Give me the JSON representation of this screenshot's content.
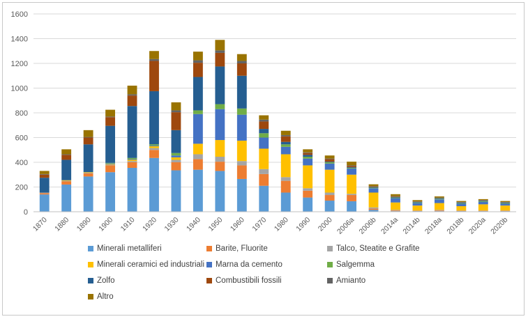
{
  "chart_data": {
    "type": "bar",
    "stacked": true,
    "title": "",
    "xlabel": "",
    "ylabel": "",
    "ylim": [
      0,
      1600
    ],
    "yticks": [
      0,
      200,
      400,
      600,
      800,
      1000,
      1200,
      1400,
      1600
    ],
    "grid": "horizontal",
    "legend": "bottom",
    "categories": [
      "1870",
      "1880",
      "1890",
      "1900",
      "1910",
      "1920",
      "1930",
      "1940",
      "1950",
      "1960",
      "1970",
      "1980",
      "1990",
      "2000",
      "2006a",
      "2006b",
      "2014a",
      "2014b",
      "2018a",
      "2018b",
      "2020a",
      "2020b"
    ],
    "series": [
      {
        "name": "Minerali metalliferi",
        "color": "#5b9bd5",
        "values": [
          140,
          220,
          285,
          320,
          355,
          435,
          335,
          340,
          330,
          265,
          210,
          155,
          115,
          90,
          85,
          15,
          5,
          5,
          5,
          5,
          5,
          5
        ]
      },
      {
        "name": "Barite, Fluorite",
        "color": "#ed7d31",
        "values": [
          10,
          25,
          25,
          55,
          45,
          65,
          65,
          85,
          75,
          110,
          95,
          95,
          55,
          45,
          50,
          10,
          5,
          3,
          5,
          3,
          3,
          3
        ]
      },
      {
        "name": "Talco, Steatite e Grafite",
        "color": "#a5a5a5",
        "values": [
          5,
          5,
          5,
          5,
          10,
          15,
          20,
          40,
          40,
          35,
          40,
          30,
          20,
          20,
          10,
          10,
          5,
          2,
          5,
          2,
          2,
          2
        ]
      },
      {
        "name": "Minerali ceramici ed industriali",
        "color": "#ffc000",
        "values": [
          0,
          5,
          5,
          5,
          10,
          15,
          20,
          85,
          135,
          165,
          165,
          185,
          185,
          185,
          155,
          120,
          60,
          40,
          55,
          35,
          50,
          40
        ]
      },
      {
        "name": "Marna da cemento",
        "color": "#4472c4",
        "values": [
          0,
          0,
          0,
          5,
          5,
          5,
          15,
          240,
          250,
          210,
          90,
          60,
          55,
          50,
          50,
          35,
          35,
          20,
          30,
          20,
          20,
          15
        ]
      },
      {
        "name": "Salgemma",
        "color": "#70ad47",
        "values": [
          0,
          0,
          0,
          5,
          10,
          10,
          20,
          30,
          40,
          50,
          35,
          20,
          15,
          10,
          5,
          5,
          5,
          5,
          5,
          5,
          5,
          5
        ]
      },
      {
        "name": "Zolfo",
        "color": "#255e91",
        "values": [
          120,
          165,
          225,
          300,
          420,
          430,
          185,
          270,
          305,
          265,
          35,
          20,
          15,
          5,
          5,
          5,
          5,
          5,
          5,
          5,
          5,
          5
        ]
      },
      {
        "name": "Combustibili fossili",
        "color": "#9e480e",
        "values": [
          25,
          40,
          55,
          70,
          85,
          245,
          145,
          115,
          110,
          100,
          60,
          45,
          15,
          20,
          10,
          5,
          5,
          2,
          2,
          2,
          2,
          2
        ]
      },
      {
        "name": "Amianto",
        "color": "#636363",
        "values": [
          5,
          5,
          5,
          5,
          10,
          15,
          15,
          20,
          20,
          20,
          15,
          10,
          5,
          5,
          5,
          2,
          2,
          2,
          2,
          2,
          2,
          2
        ]
      },
      {
        "name": "Altro",
        "color": "#997300",
        "values": [
          25,
          40,
          55,
          55,
          70,
          65,
          65,
          70,
          85,
          55,
          35,
          35,
          25,
          25,
          30,
          15,
          15,
          10,
          10,
          8,
          8,
          8
        ]
      }
    ]
  }
}
